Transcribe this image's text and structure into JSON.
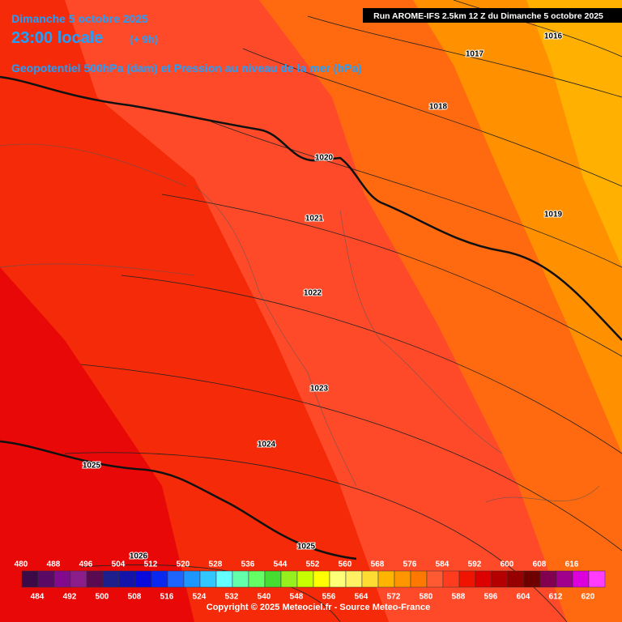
{
  "header": {
    "date": "Dimanche 5 octobre 2025",
    "time": "23:00 locale",
    "offset": "(+ 9h)",
    "subtitle": "Geopotentiel 500hPa (dam) et Pression au niveau de la mer (hPa)",
    "run": "Run AROME-IFS 2.5km 12 Z du Dimanche 5 octobre 2025"
  },
  "isobars": [
    "1016",
    "1017",
    "1018",
    "1019",
    "1020",
    "1021",
    "1022",
    "1023",
    "1024",
    "1025",
    "1025",
    "1026"
  ],
  "legend": {
    "values": [
      480,
      484,
      488,
      492,
      496,
      500,
      504,
      508,
      512,
      516,
      520,
      524,
      528,
      532,
      536,
      540,
      544,
      548,
      552,
      556,
      560,
      564,
      568,
      572,
      576,
      580,
      584,
      588,
      592,
      596,
      600,
      604,
      608,
      612,
      616,
      620
    ],
    "colors": [
      "#3c0a46",
      "#5a0a64",
      "#820a8c",
      "#8c1e8c",
      "#5a0a50",
      "#1e1e8c",
      "#1414aa",
      "#0a0adc",
      "#0a28f0",
      "#1e64ff",
      "#1e96ff",
      "#32c8ff",
      "#64ffff",
      "#64ffaa",
      "#64ff64",
      "#46dc32",
      "#96f01e",
      "#c8ff00",
      "#ffff00",
      "#ffff78",
      "#fff064",
      "#ffdc32",
      "#ffb400",
      "#ff9600",
      "#ff7800",
      "#ff5a32",
      "#ff3c1e",
      "#f01400",
      "#dc0000",
      "#b40000",
      "#960000",
      "#6e0000",
      "#820050",
      "#a0008c",
      "#dc00dc",
      "#ff3cff",
      "#ff82ff"
    ]
  },
  "copyright": "Copyright © 2025 Meteociel.fr - Source Meteo-France"
}
